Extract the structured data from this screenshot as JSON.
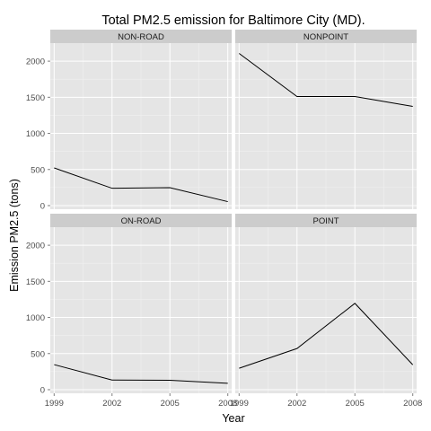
{
  "chart_data": {
    "type": "line",
    "title": "Total PM2.5 emission for Baltimore City (MD).",
    "xlabel": "Year",
    "ylabel": "Emission PM2.5 (tons)",
    "x": [
      1999,
      2002,
      2005,
      2008
    ],
    "x_ticks": [
      1999,
      2002,
      2005,
      2008
    ],
    "xlim": [
      1998.8,
      2008.2
    ],
    "y_ticks": [
      0,
      500,
      1000,
      1500,
      2000
    ],
    "ylim": [
      -50,
      2250
    ],
    "grid": true,
    "panel_background": "#e5e5e5",
    "strip_background": "#cccccc",
    "line_color": "#000000",
    "series": [
      {
        "name": "NON-ROAD",
        "values": [
          522,
          240,
          248,
          55
        ]
      },
      {
        "name": "NONPOINT",
        "values": [
          2107,
          1510,
          1510,
          1373
        ]
      },
      {
        "name": "ON-ROAD",
        "values": [
          347,
          134,
          131,
          88
        ]
      },
      {
        "name": "POINT",
        "values": [
          297,
          570,
          1195,
          345
        ]
      }
    ]
  }
}
